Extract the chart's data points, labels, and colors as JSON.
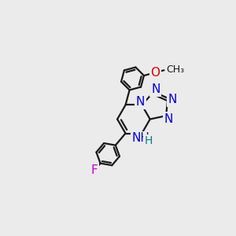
{
  "background_color": "#ebebeb",
  "bond_color": "#1a1a1a",
  "bond_width": 1.6,
  "atom_colors": {
    "N": "#0000e0",
    "O": "#dd0000",
    "F": "#cc00cc",
    "C": "#1a1a1a",
    "H": "#008080"
  },
  "font_size": 10,
  "u": 0.9
}
